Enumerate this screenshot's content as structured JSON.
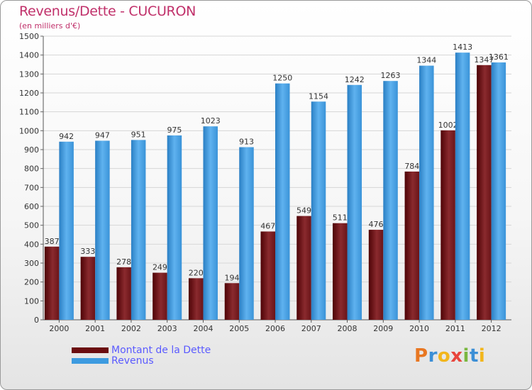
{
  "chart_data": {
    "type": "bar",
    "title": "Revenus/Dette - CUCURON",
    "subtitle": "(en milliers d'€)",
    "categories": [
      "2000",
      "2001",
      "2002",
      "2003",
      "2004",
      "2005",
      "2006",
      "2007",
      "2008",
      "2009",
      "2010",
      "2011",
      "2012"
    ],
    "series": [
      {
        "name": "Montant de la Dette",
        "color": "#7a1e22",
        "values": [
          387,
          333,
          278,
          249,
          220,
          194,
          467,
          549,
          511,
          476,
          784,
          1002,
          1347
        ]
      },
      {
        "name": "Revenus",
        "color": "#3d9be0",
        "values": [
          942,
          947,
          951,
          975,
          1023,
          913,
          1250,
          1154,
          1242,
          1263,
          1344,
          1413,
          1361
        ]
      }
    ],
    "data_labels": {
      "Montant de la Dette": [
        "387",
        "333",
        "278",
        "249",
        "220",
        "194",
        "467",
        "549",
        "511",
        "476",
        "784",
        "1002",
        "1347"
      ],
      "Revenus": [
        "942",
        "947",
        "951",
        "975",
        "1023",
        "913",
        "1250",
        "1154",
        "1242",
        "1263",
        "1344",
        "1413",
        "1361"
      ]
    },
    "ylim": [
      0,
      1500
    ],
    "yticks": [
      0,
      100,
      200,
      300,
      400,
      500,
      600,
      700,
      800,
      900,
      1000,
      1100,
      1200,
      1300,
      1400,
      1500
    ],
    "xlabel": "",
    "ylabel": "",
    "grid": true,
    "legend": "bottom-left"
  },
  "legend_items": [
    {
      "label": "Montant de la Dette",
      "color": "#6b0d10"
    },
    {
      "label": "Revenus",
      "color": "#3d9be0"
    }
  ],
  "logo": {
    "letters": [
      "P",
      "r",
      "o",
      "x",
      "i",
      "t",
      "i"
    ],
    "colors": [
      "#e87722",
      "#3c8fd6",
      "#f2b61c",
      "#e8453c",
      "#7ab740",
      "#3c8fd6",
      "#f2b61c"
    ]
  }
}
